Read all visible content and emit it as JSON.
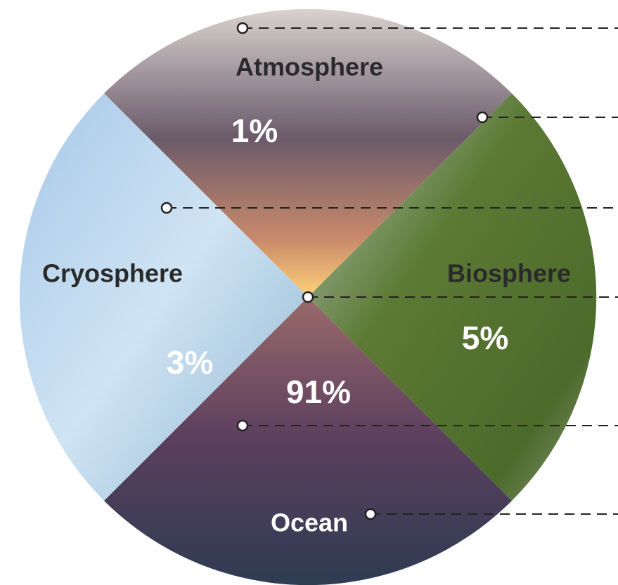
{
  "segments": [
    {
      "label": "Atmosphere",
      "share": "1%"
    },
    {
      "label": "Biosphere",
      "share": "5%"
    },
    {
      "label": "Ocean",
      "share": "91%"
    },
    {
      "label": "Cryosphere",
      "share": "3%"
    }
  ]
}
